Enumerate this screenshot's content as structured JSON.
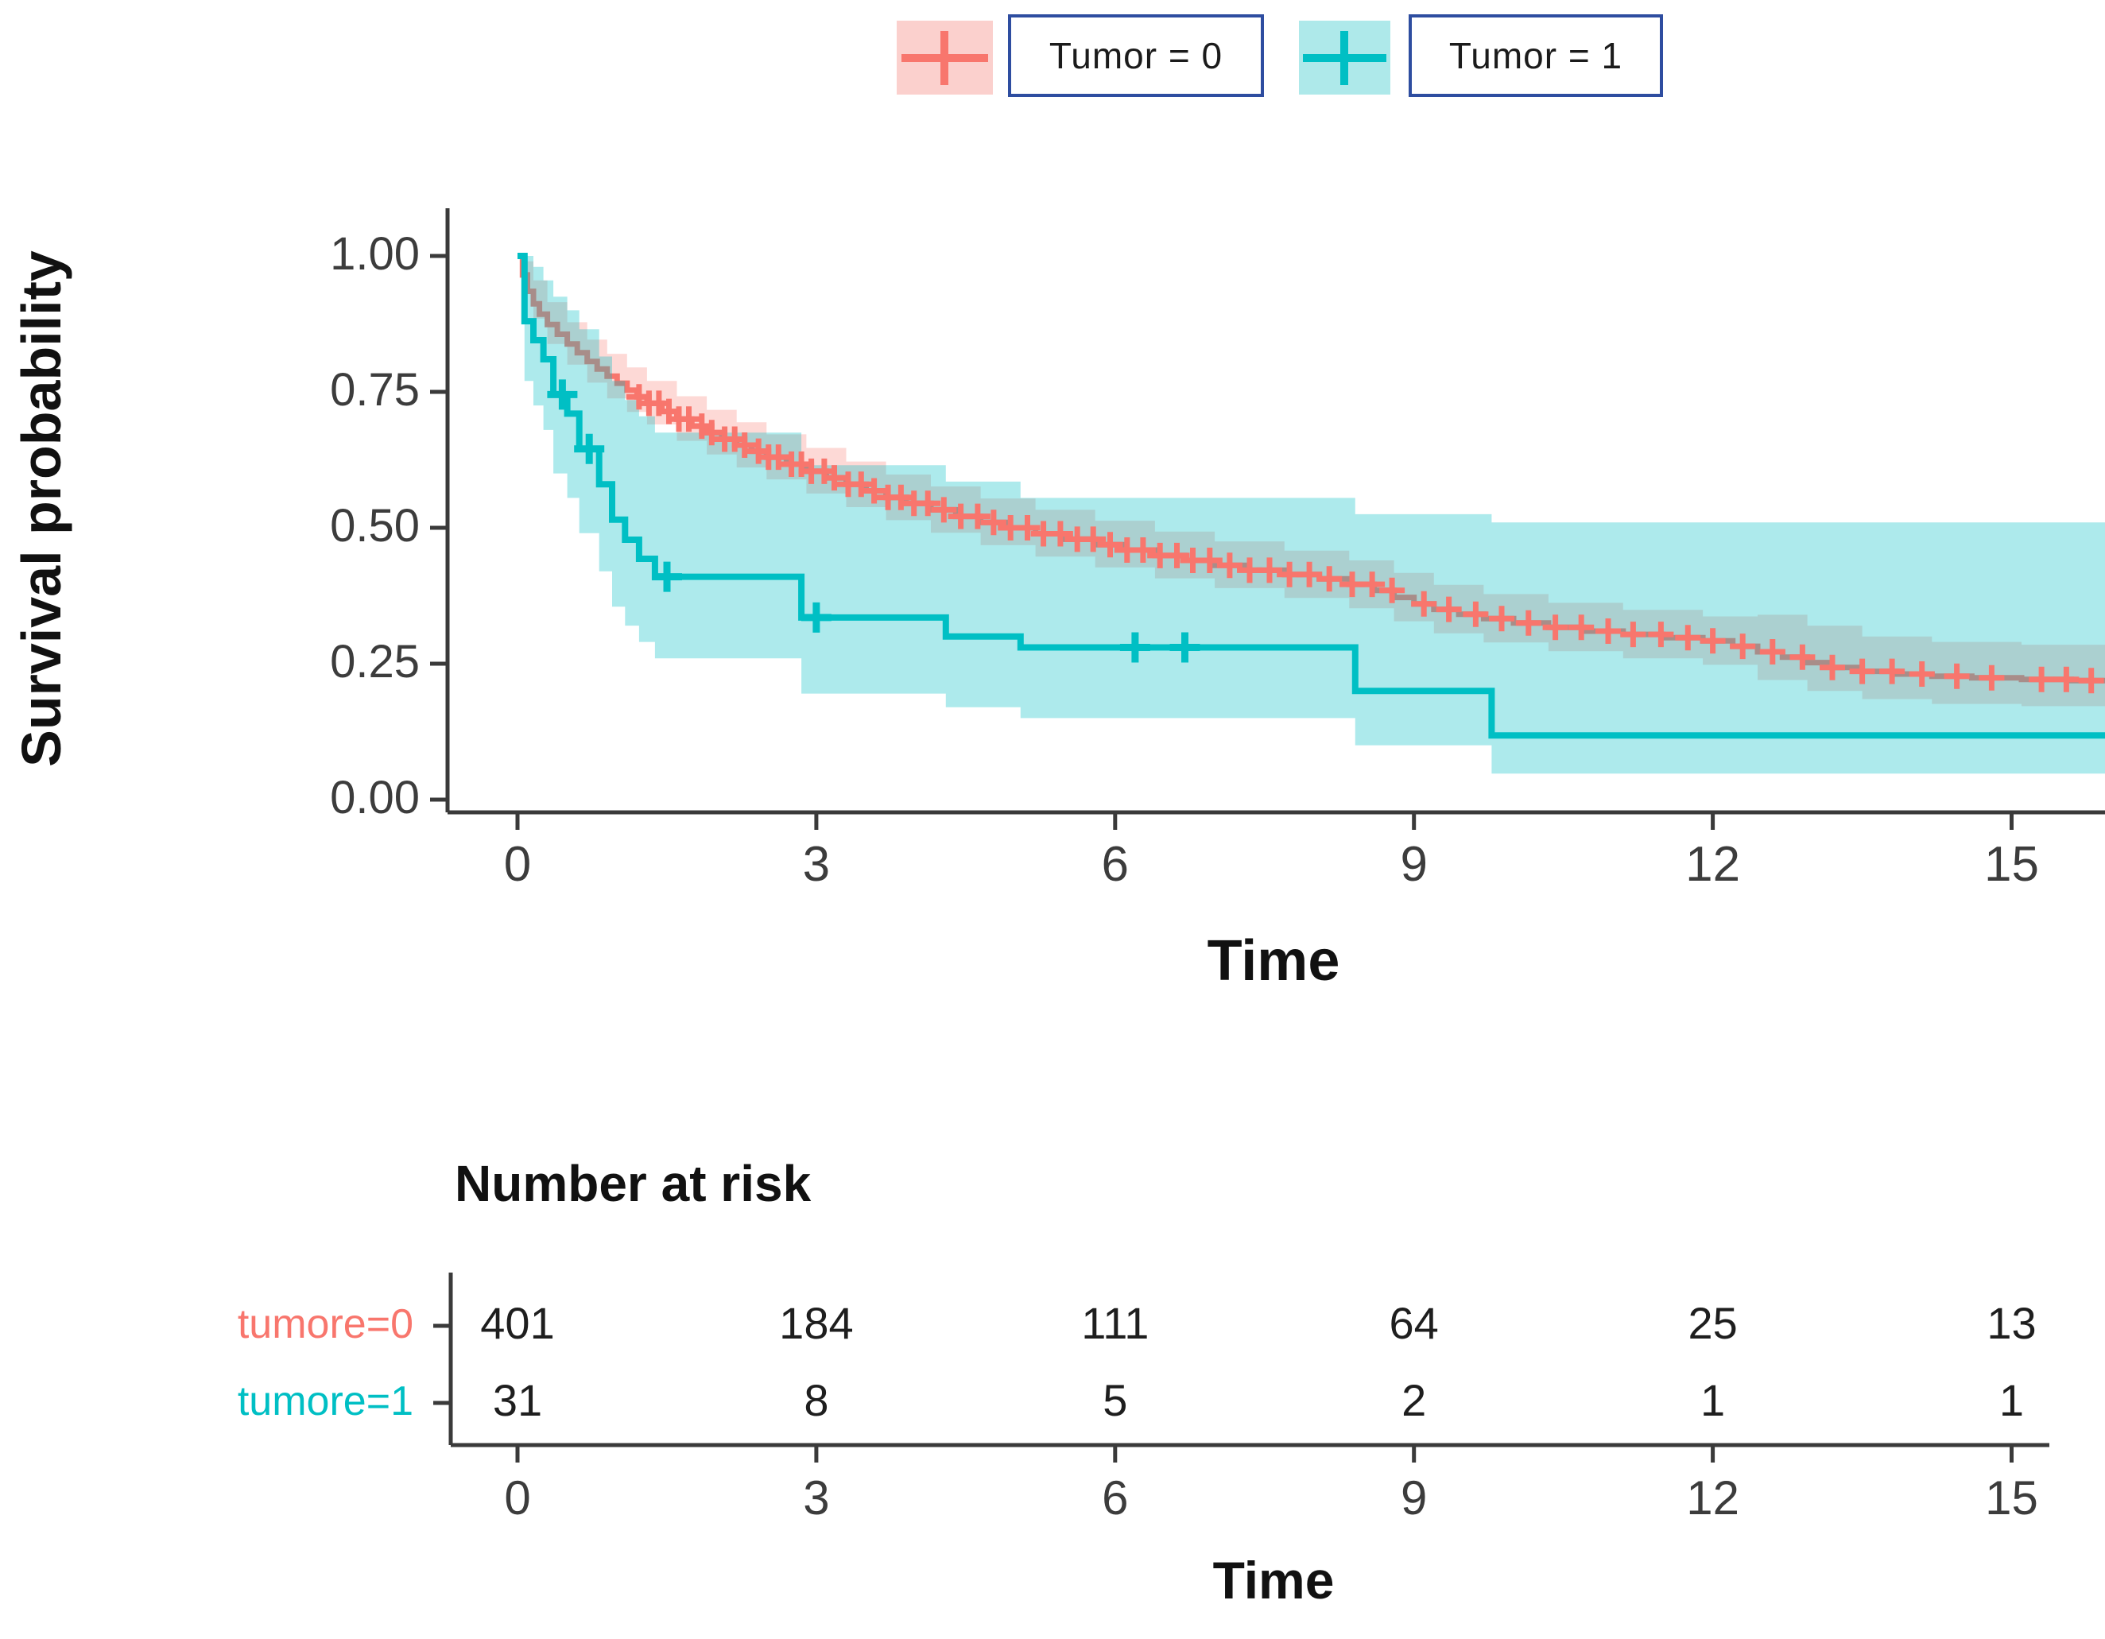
{
  "figure": {
    "y_axis_title": "Survival probability",
    "x_axis_title": "Time"
  },
  "legend": {
    "box_border_color": "#2e4da0",
    "items": [
      {
        "label": "Tumor = 0",
        "color": "#F8766D",
        "key_fill": "#FBD0CD"
      },
      {
        "label": "Tumor = 1",
        "color": "#00BFC4",
        "key_fill": "#AEE9EA"
      }
    ]
  },
  "chart_data": {
    "type": "line",
    "subtype": "kaplan-meier-step-with-confidence-bands",
    "title": "",
    "xlabel": "Time",
    "ylabel": "Survival probability",
    "xlim": [
      0,
      15.94
    ],
    "ylim": [
      0,
      1
    ],
    "grid": false,
    "x_ticks": [
      0,
      3,
      6,
      9,
      12,
      15
    ],
    "y_ticks": [
      {
        "value": 1.0,
        "label": "1.00"
      },
      {
        "value": 0.75,
        "label": "0.75"
      },
      {
        "value": 0.5,
        "label": "0.50"
      },
      {
        "value": 0.25,
        "label": "0.25"
      },
      {
        "value": 0.0,
        "label": "0.00"
      }
    ],
    "series": [
      {
        "name": "Tumor = 0",
        "color": "#F8766D",
        "band_opacity": 0.28,
        "line_width": 7,
        "steps": [
          [
            0.05,
            0.965
          ],
          [
            0.1,
            0.935
          ],
          [
            0.16,
            0.912
          ],
          [
            0.22,
            0.893
          ],
          [
            0.3,
            0.874
          ],
          [
            0.4,
            0.856
          ],
          [
            0.5,
            0.838
          ],
          [
            0.6,
            0.822
          ],
          [
            0.7,
            0.806
          ],
          [
            0.8,
            0.792
          ],
          [
            0.9,
            0.779
          ],
          [
            1.0,
            0.766
          ],
          [
            1.1,
            0.753
          ],
          [
            1.2,
            0.741
          ],
          [
            1.3,
            0.729
          ],
          [
            1.45,
            0.714
          ],
          [
            1.6,
            0.7
          ],
          [
            1.75,
            0.687
          ],
          [
            1.9,
            0.675
          ],
          [
            2.05,
            0.663
          ],
          [
            2.2,
            0.652
          ],
          [
            2.35,
            0.641
          ],
          [
            2.5,
            0.63
          ],
          [
            2.7,
            0.617
          ],
          [
            2.9,
            0.604
          ],
          [
            3.1,
            0.592
          ],
          [
            3.3,
            0.58
          ],
          [
            3.5,
            0.568
          ],
          [
            3.7,
            0.556
          ],
          [
            3.9,
            0.545
          ],
          [
            4.15,
            0.533
          ],
          [
            4.4,
            0.521
          ],
          [
            4.65,
            0.51
          ],
          [
            4.9,
            0.5
          ],
          [
            5.2,
            0.489
          ],
          [
            5.5,
            0.479
          ],
          [
            5.8,
            0.469
          ],
          [
            6.1,
            0.459
          ],
          [
            6.4,
            0.449
          ],
          [
            6.7,
            0.44
          ],
          [
            7.0,
            0.431
          ],
          [
            7.35,
            0.422
          ],
          [
            7.7,
            0.414
          ],
          [
            8.05,
            0.406
          ],
          [
            8.35,
            0.396
          ],
          [
            8.6,
            0.385
          ],
          [
            8.8,
            0.372
          ],
          [
            9.0,
            0.36
          ],
          [
            9.2,
            0.35
          ],
          [
            9.45,
            0.341
          ],
          [
            9.7,
            0.333
          ],
          [
            10.0,
            0.325
          ],
          [
            10.35,
            0.317
          ],
          [
            10.7,
            0.31
          ],
          [
            11.1,
            0.304
          ],
          [
            11.5,
            0.298
          ],
          [
            11.9,
            0.292
          ],
          [
            12.2,
            0.282
          ],
          [
            12.45,
            0.272
          ],
          [
            12.7,
            0.262
          ],
          [
            12.95,
            0.252
          ],
          [
            13.2,
            0.243
          ],
          [
            13.5,
            0.236
          ],
          [
            13.85,
            0.231
          ],
          [
            14.2,
            0.227
          ],
          [
            14.6,
            0.224
          ],
          [
            15.1,
            0.221
          ],
          [
            15.6,
            0.219
          ]
        ],
        "censor_times": [
          1.22,
          1.32,
          1.42,
          1.52,
          1.62,
          1.72,
          1.85,
          1.95,
          2.08,
          2.18,
          2.28,
          2.42,
          2.52,
          2.62,
          2.75,
          2.85,
          2.95,
          3.08,
          3.18,
          3.32,
          3.45,
          3.58,
          3.72,
          3.85,
          3.98,
          4.12,
          4.28,
          4.45,
          4.62,
          4.78,
          4.95,
          5.12,
          5.28,
          5.45,
          5.62,
          5.78,
          5.95,
          6.12,
          6.28,
          6.45,
          6.62,
          6.78,
          6.95,
          7.15,
          7.35,
          7.55,
          7.75,
          7.95,
          8.15,
          8.38,
          8.58,
          8.78,
          9.1,
          9.35,
          9.62,
          9.88,
          10.15,
          10.42,
          10.68,
          10.95,
          11.2,
          11.48,
          11.75,
          12.0,
          12.3,
          12.6,
          12.9,
          13.2,
          13.5,
          13.8,
          14.1,
          14.45,
          14.8,
          15.3,
          15.55,
          15.8
        ],
        "ci": [
          [
            0,
            1.0,
            1.0
          ],
          [
            0.05,
            0.99,
            0.94
          ],
          [
            0.16,
            0.955,
            0.885
          ],
          [
            0.3,
            0.915,
            0.838
          ],
          [
            0.5,
            0.878,
            0.8
          ],
          [
            0.7,
            0.846,
            0.767
          ],
          [
            0.9,
            0.82,
            0.738
          ],
          [
            1.1,
            0.795,
            0.713
          ],
          [
            1.3,
            0.77,
            0.69
          ],
          [
            1.6,
            0.742,
            0.66
          ],
          [
            1.9,
            0.717,
            0.635
          ],
          [
            2.2,
            0.694,
            0.611
          ],
          [
            2.5,
            0.672,
            0.589
          ],
          [
            2.9,
            0.647,
            0.563
          ],
          [
            3.3,
            0.622,
            0.538
          ],
          [
            3.7,
            0.598,
            0.514
          ],
          [
            4.15,
            0.576,
            0.491
          ],
          [
            4.65,
            0.554,
            0.468
          ],
          [
            5.2,
            0.533,
            0.447
          ],
          [
            5.8,
            0.513,
            0.427
          ],
          [
            6.4,
            0.493,
            0.407
          ],
          [
            7.0,
            0.475,
            0.389
          ],
          [
            7.7,
            0.458,
            0.371
          ],
          [
            8.35,
            0.44,
            0.352
          ],
          [
            8.8,
            0.417,
            0.328
          ],
          [
            9.2,
            0.395,
            0.306
          ],
          [
            9.7,
            0.378,
            0.289
          ],
          [
            10.35,
            0.362,
            0.273
          ],
          [
            11.1,
            0.349,
            0.26
          ],
          [
            11.9,
            0.337,
            0.248
          ],
          [
            12.45,
            0.34,
            0.22
          ],
          [
            12.95,
            0.32,
            0.2
          ],
          [
            13.5,
            0.3,
            0.185
          ],
          [
            14.2,
            0.29,
            0.176
          ],
          [
            15.1,
            0.285,
            0.172
          ]
        ]
      },
      {
        "name": "Tumor = 1",
        "color": "#00BFC4",
        "band_opacity": 0.32,
        "line_width": 8,
        "steps": [
          [
            0.07,
            0.88
          ],
          [
            0.16,
            0.845
          ],
          [
            0.26,
            0.81
          ],
          [
            0.36,
            0.745
          ],
          [
            0.5,
            0.71
          ],
          [
            0.62,
            0.645
          ],
          [
            0.82,
            0.58
          ],
          [
            0.95,
            0.515
          ],
          [
            1.08,
            0.478
          ],
          [
            1.22,
            0.443
          ],
          [
            1.38,
            0.41
          ],
          [
            2.85,
            0.335
          ],
          [
            4.3,
            0.3
          ],
          [
            5.05,
            0.28
          ],
          [
            8.41,
            0.2
          ],
          [
            9.78,
            0.118
          ]
        ],
        "censor_times": [
          0.45,
          0.72,
          1.5,
          3.0,
          6.2,
          6.7
        ],
        "ci": [
          [
            0,
            1.0,
            1.0
          ],
          [
            0.07,
            1.0,
            0.77
          ],
          [
            0.16,
            0.98,
            0.725
          ],
          [
            0.26,
            0.955,
            0.68
          ],
          [
            0.36,
            0.925,
            0.6
          ],
          [
            0.5,
            0.9,
            0.555
          ],
          [
            0.62,
            0.865,
            0.49
          ],
          [
            0.82,
            0.815,
            0.42
          ],
          [
            0.95,
            0.77,
            0.355
          ],
          [
            1.08,
            0.735,
            0.32
          ],
          [
            1.22,
            0.705,
            0.29
          ],
          [
            1.38,
            0.675,
            0.26
          ],
          [
            2.85,
            0.615,
            0.195
          ],
          [
            4.3,
            0.585,
            0.17
          ],
          [
            5.05,
            0.555,
            0.15
          ],
          [
            8.41,
            0.525,
            0.1
          ],
          [
            9.78,
            0.51,
            0.048
          ]
        ]
      }
    ]
  },
  "risk_table": {
    "title": "Number at risk",
    "xlabel": "Time",
    "x_ticks": [
      0,
      3,
      6,
      9,
      12,
      15
    ],
    "rows": [
      {
        "label": "tumore=0",
        "color": "#F8766D",
        "values": [
          401,
          184,
          111,
          64,
          25,
          13
        ]
      },
      {
        "label": "tumore=1",
        "color": "#00BFC4",
        "values": [
          31,
          8,
          5,
          2,
          1,
          1
        ]
      }
    ]
  }
}
